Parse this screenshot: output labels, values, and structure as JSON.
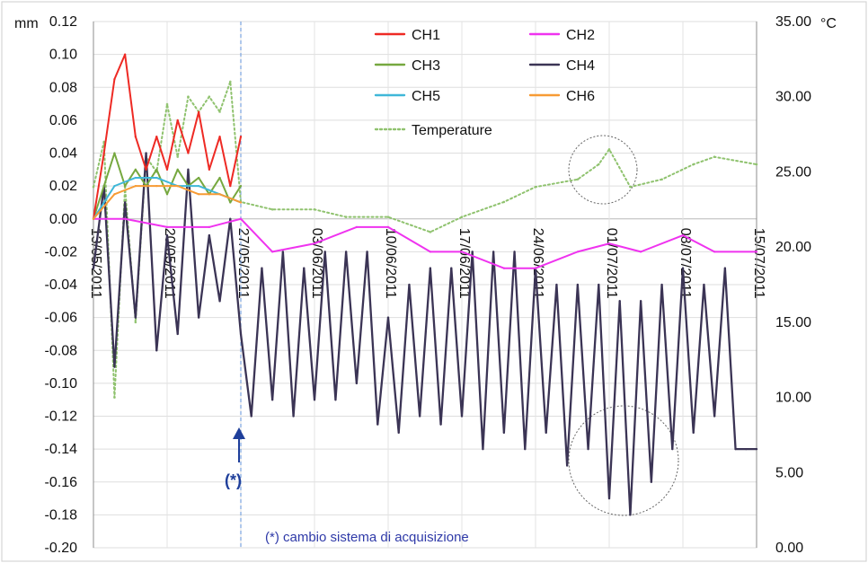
{
  "chart_data": {
    "type": "line",
    "left_axis": {
      "unit_label": "mm",
      "ylim": [
        -0.2,
        0.12
      ],
      "ticks": [
        0.12,
        0.1,
        0.08,
        0.06,
        0.04,
        0.02,
        0.0,
        -0.02,
        -0.04,
        -0.06,
        -0.08,
        -0.1,
        -0.12,
        -0.14,
        -0.16,
        -0.18,
        -0.2
      ],
      "tick_labels": [
        "0.12",
        "0.10",
        "0.08",
        "0.06",
        "0.04",
        "0.02",
        "0.00",
        "-0.02",
        "-0.04",
        "-0.06",
        "-0.08",
        "-0.10",
        "-0.12",
        "-0.14",
        "-0.16",
        "-0.18",
        "-0.20"
      ]
    },
    "right_axis": {
      "unit_label": "°C",
      "ylim": [
        0,
        35
      ],
      "ticks": [
        35,
        30,
        25,
        20,
        15,
        10,
        5,
        0
      ],
      "tick_labels": [
        "35.00",
        "30.00",
        "25.00",
        "20.00",
        "15.00",
        "10.00",
        "5.00",
        "0.00"
      ]
    },
    "x_axis": {
      "start": "2011-05-13",
      "end": "2011-07-15",
      "ticks": [
        "2011-05-13",
        "2011-05-20",
        "2011-05-27",
        "2011-06-03",
        "2011-06-10",
        "2011-06-17",
        "2011-06-24",
        "2011-07-01",
        "2011-07-08",
        "2011-07-15"
      ],
      "tick_labels": [
        "13/05/2011",
        "20/05/2011",
        "27/05/2011",
        "03/06/2011",
        "10/06/2011",
        "17/06/2011",
        "24/06/2011",
        "01/07/2011",
        "08/07/2011",
        "15/07/2011"
      ]
    },
    "grid": true,
    "legend": {
      "placement": "top-center",
      "items": [
        {
          "label": "CH1",
          "color": "#ee2a24",
          "style": "solid"
        },
        {
          "label": "CH2",
          "color": "#ef33ef",
          "style": "solid"
        },
        {
          "label": "CH3",
          "color": "#76a83f",
          "style": "solid"
        },
        {
          "label": "CH4",
          "color": "#3b3455",
          "style": "solid"
        },
        {
          "label": "CH5",
          "color": "#3fb7d8",
          "style": "solid"
        },
        {
          "label": "CH6",
          "color": "#f79b34",
          "style": "solid"
        },
        {
          "label": "Temperature",
          "color": "#8fc26e",
          "style": "dotted"
        }
      ]
    },
    "series": [
      {
        "name": "CH1",
        "axis": "left",
        "x": [
          "2011-05-13",
          "2011-05-14",
          "2011-05-15",
          "2011-05-16",
          "2011-05-17",
          "2011-05-18",
          "2011-05-19",
          "2011-05-20",
          "2011-05-21",
          "2011-05-22",
          "2011-05-23",
          "2011-05-24",
          "2011-05-25",
          "2011-05-26",
          "2011-05-27"
        ],
        "y": [
          0.0,
          0.04,
          0.085,
          0.1,
          0.05,
          0.03,
          0.05,
          0.03,
          0.06,
          0.04,
          0.065,
          0.03,
          0.05,
          0.02,
          0.05
        ]
      },
      {
        "name": "CH2",
        "axis": "left",
        "x": [
          "2011-05-13",
          "2011-05-16",
          "2011-05-20",
          "2011-05-24",
          "2011-05-27",
          "2011-05-30",
          "2011-06-03",
          "2011-06-07",
          "2011-06-10",
          "2011-06-14",
          "2011-06-17",
          "2011-06-21",
          "2011-06-24",
          "2011-06-28",
          "2011-07-01",
          "2011-07-04",
          "2011-07-08",
          "2011-07-11",
          "2011-07-15"
        ],
        "y": [
          0.0,
          0.0,
          -0.005,
          -0.005,
          0.0,
          -0.02,
          -0.015,
          -0.005,
          -0.005,
          -0.02,
          -0.02,
          -0.03,
          -0.03,
          -0.02,
          -0.015,
          -0.02,
          -0.01,
          -0.02,
          -0.02
        ]
      },
      {
        "name": "CH3",
        "axis": "left",
        "x": [
          "2011-05-13",
          "2011-05-14",
          "2011-05-15",
          "2011-05-16",
          "2011-05-17",
          "2011-05-18",
          "2011-05-19",
          "2011-05-20",
          "2011-05-21",
          "2011-05-22",
          "2011-05-23",
          "2011-05-24",
          "2011-05-25",
          "2011-05-26",
          "2011-05-27"
        ],
        "y": [
          0.0,
          0.02,
          0.04,
          0.02,
          0.03,
          0.02,
          0.03,
          0.015,
          0.03,
          0.02,
          0.025,
          0.015,
          0.025,
          0.01,
          0.02
        ]
      },
      {
        "name": "CH4",
        "axis": "left",
        "x": [
          "2011-05-13",
          "2011-05-14",
          "2011-05-15",
          "2011-05-16",
          "2011-05-17",
          "2011-05-18",
          "2011-05-19",
          "2011-05-20",
          "2011-05-21",
          "2011-05-22",
          "2011-05-23",
          "2011-05-24",
          "2011-05-25",
          "2011-05-26",
          "2011-05-27",
          "2011-05-28",
          "2011-05-29",
          "2011-05-30",
          "2011-05-31",
          "2011-06-01",
          "2011-06-02",
          "2011-06-03",
          "2011-06-04",
          "2011-06-05",
          "2011-06-06",
          "2011-06-07",
          "2011-06-08",
          "2011-06-09",
          "2011-06-10",
          "2011-06-11",
          "2011-06-12",
          "2011-06-13",
          "2011-06-14",
          "2011-06-15",
          "2011-06-16",
          "2011-06-17",
          "2011-06-18",
          "2011-06-19",
          "2011-06-20",
          "2011-06-21",
          "2011-06-22",
          "2011-06-23",
          "2011-06-24",
          "2011-06-25",
          "2011-06-26",
          "2011-06-27",
          "2011-06-28",
          "2011-06-29",
          "2011-06-30",
          "2011-07-01",
          "2011-07-02",
          "2011-07-03",
          "2011-07-04",
          "2011-07-05",
          "2011-07-06",
          "2011-07-07",
          "2011-07-08",
          "2011-07-09",
          "2011-07-10",
          "2011-07-11",
          "2011-07-12",
          "2011-07-13",
          "2011-07-14",
          "2011-07-15"
        ],
        "y": [
          -0.03,
          0.02,
          -0.09,
          0.01,
          -0.06,
          0.04,
          -0.08,
          -0.01,
          -0.07,
          0.03,
          -0.06,
          -0.01,
          -0.05,
          0.0,
          -0.07,
          -0.12,
          -0.03,
          -0.11,
          -0.02,
          -0.12,
          -0.03,
          -0.11,
          -0.02,
          -0.11,
          -0.02,
          -0.1,
          -0.02,
          -0.125,
          -0.06,
          -0.13,
          -0.04,
          -0.12,
          -0.03,
          -0.125,
          -0.03,
          -0.12,
          -0.02,
          -0.14,
          -0.02,
          -0.13,
          -0.02,
          -0.14,
          -0.03,
          -0.13,
          -0.04,
          -0.15,
          -0.04,
          -0.14,
          -0.04,
          -0.17,
          -0.05,
          -0.18,
          -0.05,
          -0.16,
          -0.04,
          -0.14,
          -0.03,
          -0.13,
          -0.04,
          -0.12,
          -0.03,
          -0.14,
          -0.14,
          -0.14
        ]
      },
      {
        "name": "CH5",
        "axis": "left",
        "x": [
          "2011-05-13",
          "2011-05-15",
          "2011-05-17",
          "2011-05-19",
          "2011-05-21",
          "2011-05-23",
          "2011-05-25",
          "2011-05-27"
        ],
        "y": [
          0.0,
          0.02,
          0.025,
          0.025,
          0.02,
          0.02,
          0.015,
          0.01
        ]
      },
      {
        "name": "CH6",
        "axis": "left",
        "x": [
          "2011-05-13",
          "2011-05-15",
          "2011-05-17",
          "2011-05-19",
          "2011-05-21",
          "2011-05-23",
          "2011-05-25",
          "2011-05-27"
        ],
        "y": [
          0.0,
          0.015,
          0.02,
          0.02,
          0.02,
          0.015,
          0.015,
          0.01
        ]
      },
      {
        "name": "Temperature",
        "axis": "right",
        "x": [
          "2011-05-13",
          "2011-05-14",
          "2011-05-15",
          "2011-05-16",
          "2011-05-17",
          "2011-05-18",
          "2011-05-19",
          "2011-05-20",
          "2011-05-21",
          "2011-05-22",
          "2011-05-23",
          "2011-05-24",
          "2011-05-25",
          "2011-05-26",
          "2011-05-27",
          "2011-05-30",
          "2011-06-03",
          "2011-06-06",
          "2011-06-10",
          "2011-06-14",
          "2011-06-17",
          "2011-06-21",
          "2011-06-24",
          "2011-06-28",
          "2011-06-30",
          "2011-07-01",
          "2011-07-03",
          "2011-07-06",
          "2011-07-09",
          "2011-07-11",
          "2011-07-15"
        ],
        "y": [
          24.0,
          27.0,
          10.0,
          24.0,
          15.0,
          26.0,
          25.0,
          29.5,
          26.0,
          30.0,
          29.0,
          30.0,
          29.0,
          31.0,
          23.0,
          22.5,
          22.5,
          22.0,
          22.0,
          21.0,
          22.0,
          23.0,
          24.0,
          24.5,
          25.5,
          26.5,
          24.0,
          24.5,
          25.5,
          26.0,
          25.5
        ]
      }
    ],
    "annotations": {
      "marker_label": "(*)",
      "note": "(*) cambio sistema di acquisizione"
    }
  }
}
